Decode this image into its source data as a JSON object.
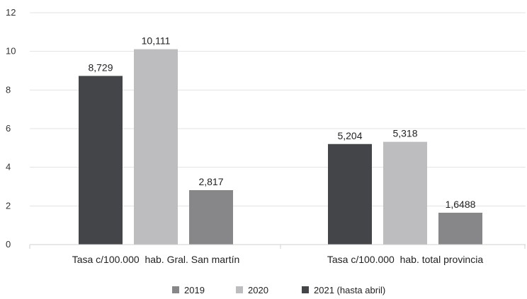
{
  "chart_data": {
    "type": "bar",
    "title": "",
    "xlabel": "",
    "ylabel": "",
    "ylim": [
      0,
      12
    ],
    "yticks": [
      0,
      2,
      4,
      6,
      8,
      10,
      12
    ],
    "ytick_labels": [
      "0",
      "2",
      "4",
      "6",
      "8",
      "10",
      "12"
    ],
    "grid": true,
    "legend_position": "bottom",
    "categories": [
      "Tasa c/100.000  hab. Gral. San martín",
      "Tasa c/100.000  hab. total provincia"
    ],
    "series": [
      {
        "name": "2021 (hasta abril)",
        "color": "#444548",
        "values": [
          8.729,
          5.204
        ],
        "labels": [
          "8,729",
          "5,204"
        ]
      },
      {
        "name": "2020",
        "color": "#bdbdbf",
        "values": [
          10.111,
          5.318
        ],
        "labels": [
          "10,111",
          "5,318"
        ]
      },
      {
        "name": "2019",
        "color": "#87878a",
        "values": [
          2.817,
          1.6488
        ],
        "labels": [
          "2,817",
          "1,6488"
        ]
      }
    ],
    "legend_order": [
      "2019",
      "2020",
      "2021 (hasta abril)"
    ]
  }
}
